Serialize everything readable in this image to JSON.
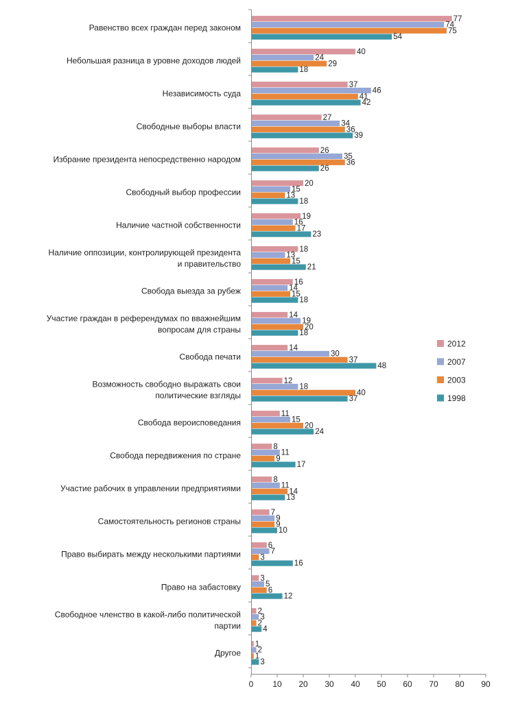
{
  "chart_data": {
    "type": "bar",
    "orientation": "horizontal",
    "title": "",
    "xlabel": "",
    "ylabel": "",
    "xlim": [
      0,
      90
    ],
    "xticks": [
      0,
      10,
      20,
      30,
      40,
      50,
      60,
      70,
      80,
      90
    ],
    "grid": false,
    "legend_position": "right",
    "categories": [
      [
        "Равенство всех граждан перед законом"
      ],
      [
        "Небольшая разница в уровне доходов людей"
      ],
      [
        "Независимость суда"
      ],
      [
        "Свободные выборы власти"
      ],
      [
        "Избрание президента непосредственно народом"
      ],
      [
        "Свободный выбор профессии"
      ],
      [
        "Наличие частной собственности"
      ],
      [
        "Наличие оппозиции, контролирующей президента",
        "и правительство"
      ],
      [
        "Свобода выезда за рубеж"
      ],
      [
        "Участие граждан в референдумах по вважнейшим",
        "вопросам для страны"
      ],
      [
        "Свобода печати"
      ],
      [
        "Возможность свободно выражать свои",
        "политические взгляды"
      ],
      [
        "Свобода вероисповедания"
      ],
      [
        "Свобода передвижения по стране"
      ],
      [
        "Участие рабочих в управлении предприятиями"
      ],
      [
        "Самостоятельность регионов страны"
      ],
      [
        "Право выбирать между несколькими партиями"
      ],
      [
        "Право на забастовку"
      ],
      [
        "Свободное членство в какой-либо политической",
        "партии"
      ],
      [
        "Другое"
      ]
    ],
    "series": [
      {
        "name": "2012",
        "color": "#d9959b",
        "values": [
          77,
          40,
          37,
          27,
          26,
          20,
          19,
          18,
          16,
          14,
          14,
          12,
          11,
          8,
          8,
          7,
          6,
          3,
          2,
          1
        ]
      },
      {
        "name": "2007",
        "color": "#97a8d6",
        "values": [
          74,
          24,
          46,
          34,
          35,
          15,
          16,
          13,
          14,
          19,
          30,
          18,
          15,
          11,
          11,
          9,
          7,
          5,
          3,
          2
        ]
      },
      {
        "name": "2003",
        "color": "#e8863a",
        "values": [
          75,
          29,
          41,
          36,
          36,
          13,
          17,
          15,
          15,
          20,
          37,
          40,
          20,
          9,
          14,
          9,
          3,
          6,
          2,
          1
        ]
      },
      {
        "name": "1998",
        "color": "#3e97a7",
        "values": [
          54,
          18,
          42,
          39,
          26,
          18,
          23,
          21,
          18,
          18,
          48,
          37,
          24,
          17,
          13,
          10,
          16,
          12,
          4,
          3
        ]
      }
    ]
  }
}
